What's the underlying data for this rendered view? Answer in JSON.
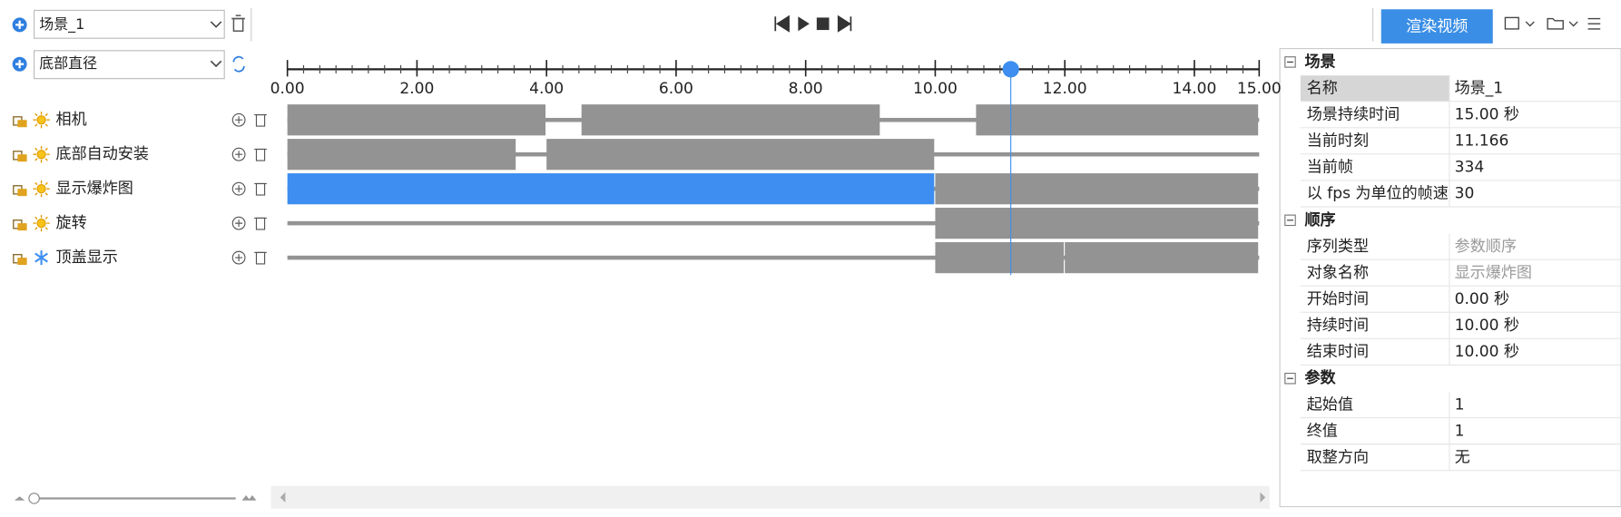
{
  "toolbar": {
    "scene": "场景_1",
    "render_button": "渲染视频"
  },
  "track_selector": "底部直径",
  "timeline": {
    "xlim": [
      0,
      15
    ],
    "xticks": [
      {
        "value": 0,
        "label": "0.00"
      },
      {
        "value": 2,
        "label": "2.00"
      },
      {
        "value": 4,
        "label": "4.00"
      },
      {
        "value": 6,
        "label": "6.00"
      },
      {
        "value": 8,
        "label": "8.00"
      },
      {
        "value": 10,
        "label": "10.00"
      },
      {
        "value": 12,
        "label": "12.00"
      },
      {
        "value": 14,
        "label": "14.00"
      },
      {
        "value": 15,
        "label": "15.00"
      }
    ],
    "minor_tick_step": 0.25,
    "playhead_color": "#3d8ef0",
    "tracks": [
      {
        "name": "相机",
        "icon": "sun",
        "color": "#939393",
        "blocks": [
          {
            "start": 0,
            "end": 4
          },
          {
            "start": 4.54,
            "end": 9.16
          },
          {
            "start": 10.63,
            "end": 15
          }
        ]
      },
      {
        "name": "底部自动安装",
        "icon": "sun",
        "color": "#939393",
        "blocks": [
          {
            "start": 0,
            "end": 3.54
          },
          {
            "start": 4,
            "end": 10
          }
        ]
      },
      {
        "name": "显示爆炸图",
        "icon": "sun",
        "color": "#939393",
        "blocks": [
          {
            "start": 0,
            "end": 10,
            "color": "#3d8ef0"
          },
          {
            "start": 10,
            "end": 15
          }
        ]
      },
      {
        "name": "旋转",
        "icon": "sun",
        "color": "#939393",
        "blocks": [
          {
            "start": 10,
            "end": 15
          }
        ]
      },
      {
        "name": "顶盖显示",
        "icon": "snow",
        "color": "#939393",
        "blocks": [
          {
            "start": 10,
            "end": 12
          },
          {
            "start": 12,
            "end": 15
          }
        ]
      }
    ]
  },
  "properties": {
    "sections": [
      {
        "title": "场景",
        "rows": [
          {
            "name": "名称",
            "value": "场景_1"
          },
          {
            "name": "场景持续时间",
            "value": "15.00 秒"
          },
          {
            "name": "当前时刻",
            "value": 11.166
          },
          {
            "name": "当前帧",
            "value": 334
          },
          {
            "name": "以 fps 为单位的帧速",
            "value": 30
          }
        ]
      },
      {
        "title": "顺序",
        "rows": [
          {
            "name": "序列类型",
            "value": "参数顺序",
            "muted": true
          },
          {
            "name": "对象名称",
            "value": "显示爆炸图",
            "muted": true
          },
          {
            "name": "开始时间",
            "value": "0.00 秒"
          },
          {
            "name": "持续时间",
            "value": "10.00 秒"
          },
          {
            "name": "结束时间",
            "value": "10.00 秒"
          }
        ]
      },
      {
        "title": "参数",
        "rows": [
          {
            "name": "起始值",
            "value": 1
          },
          {
            "name": "终值",
            "value": 1
          },
          {
            "name": "取整方向",
            "value": "无"
          }
        ]
      }
    ]
  }
}
